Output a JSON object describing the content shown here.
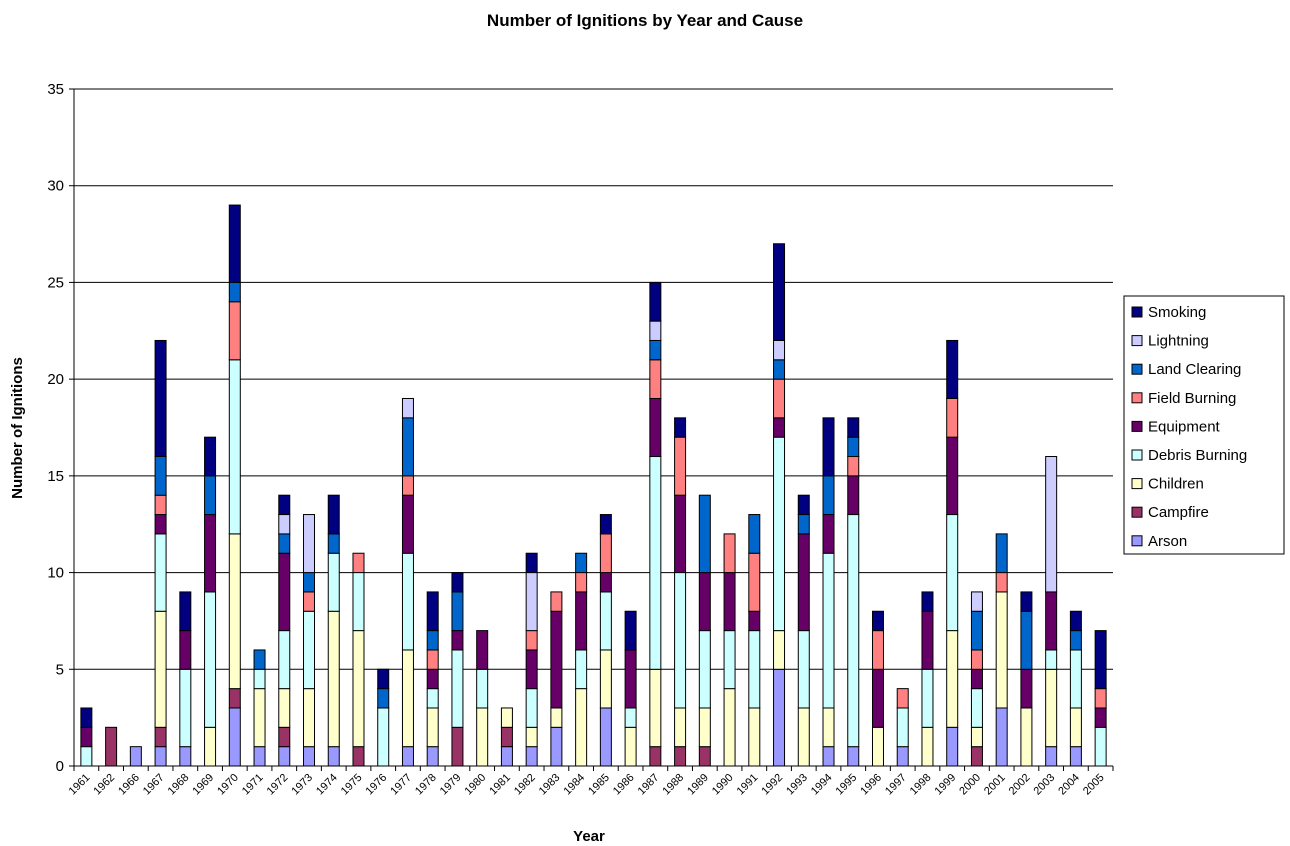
{
  "chart_data": {
    "type": "bar",
    "stacked": true,
    "title": "Number of Ignitions by Year and Cause",
    "xlabel": "Year",
    "ylabel": "Number of Ignitions",
    "ylim": [
      0,
      35
    ],
    "yticks": [
      0,
      5,
      10,
      15,
      20,
      25,
      30,
      35
    ],
    "grid": true,
    "legend_position": "right",
    "categories": [
      "1961",
      "1962",
      "1966",
      "1967",
      "1968",
      "1969",
      "1970",
      "1971",
      "1972",
      "1973",
      "1974",
      "1975",
      "1976",
      "1977",
      "1978",
      "1979",
      "1980",
      "1981",
      "1982",
      "1983",
      "1984",
      "1985",
      "1986",
      "1987",
      "1988",
      "1989",
      "1990",
      "1991",
      "1992",
      "1993",
      "1994",
      "1995",
      "1996",
      "1997",
      "1998",
      "1999",
      "2000",
      "2001",
      "2002",
      "2003",
      "2004",
      "2005"
    ],
    "series": [
      {
        "name": "Arson",
        "color": "#9999ff",
        "values": [
          0,
          0,
          1,
          1,
          1,
          0,
          3,
          1,
          1,
          1,
          1,
          0,
          0,
          1,
          1,
          0,
          0,
          1,
          1,
          2,
          0,
          3,
          0,
          0,
          0,
          0,
          0,
          0,
          5,
          0,
          1,
          1,
          0,
          1,
          0,
          2,
          0,
          3,
          0,
          1,
          1,
          0
        ]
      },
      {
        "name": "Campfire",
        "color": "#993366",
        "values": [
          0,
          2,
          0,
          1,
          0,
          0,
          1,
          0,
          1,
          0,
          0,
          1,
          0,
          0,
          0,
          2,
          0,
          1,
          0,
          0,
          0,
          0,
          0,
          1,
          1,
          1,
          0,
          0,
          0,
          0,
          0,
          0,
          0,
          0,
          0,
          0,
          1,
          0,
          0,
          0,
          0,
          0
        ]
      },
      {
        "name": "Children",
        "color": "#ffffcc",
        "values": [
          0,
          0,
          0,
          6,
          0,
          2,
          8,
          3,
          2,
          3,
          7,
          6,
          0,
          5,
          2,
          0,
          3,
          1,
          1,
          1,
          4,
          3,
          2,
          4,
          2,
          2,
          4,
          3,
          2,
          3,
          2,
          0,
          2,
          0,
          2,
          5,
          1,
          6,
          3,
          4,
          2,
          0
        ]
      },
      {
        "name": "Debris Burning",
        "color": "#ccffff",
        "values": [
          1,
          0,
          0,
          4,
          4,
          7,
          9,
          1,
          3,
          4,
          3,
          3,
          3,
          5,
          1,
          4,
          2,
          0,
          2,
          0,
          2,
          3,
          1,
          11,
          7,
          4,
          3,
          4,
          10,
          4,
          8,
          12,
          0,
          2,
          3,
          6,
          2,
          0,
          0,
          1,
          3,
          2
        ]
      },
      {
        "name": "Equipment",
        "color": "#660066",
        "values": [
          1,
          0,
          0,
          1,
          2,
          4,
          0,
          0,
          4,
          0,
          0,
          0,
          0,
          3,
          1,
          1,
          2,
          0,
          2,
          5,
          3,
          1,
          3,
          3,
          4,
          3,
          3,
          1,
          1,
          5,
          2,
          2,
          3,
          0,
          3,
          4,
          1,
          0,
          2,
          3,
          0,
          1
        ]
      },
      {
        "name": "Field Burning",
        "color": "#ff8080",
        "values": [
          0,
          0,
          0,
          1,
          0,
          0,
          3,
          0,
          0,
          1,
          0,
          1,
          0,
          1,
          1,
          0,
          0,
          0,
          1,
          1,
          1,
          2,
          0,
          2,
          3,
          0,
          2,
          3,
          2,
          0,
          0,
          1,
          2,
          1,
          0,
          2,
          1,
          1,
          0,
          0,
          0,
          1
        ]
      },
      {
        "name": "Land Clearing",
        "color": "#0066cc",
        "values": [
          0,
          0,
          0,
          2,
          0,
          2,
          1,
          1,
          1,
          1,
          1,
          0,
          1,
          3,
          1,
          2,
          0,
          0,
          0,
          0,
          1,
          0,
          0,
          1,
          0,
          4,
          0,
          2,
          1,
          1,
          2,
          1,
          0,
          0,
          0,
          0,
          2,
          2,
          3,
          0,
          1,
          0
        ]
      },
      {
        "name": "Lightning",
        "color": "#ccccff",
        "values": [
          0,
          0,
          0,
          0,
          0,
          0,
          0,
          0,
          1,
          3,
          0,
          0,
          0,
          1,
          0,
          0,
          0,
          0,
          3,
          0,
          0,
          0,
          0,
          1,
          0,
          0,
          0,
          0,
          1,
          0,
          0,
          0,
          0,
          0,
          0,
          0,
          1,
          0,
          0,
          7,
          0,
          0
        ]
      },
      {
        "name": "Smoking",
        "color": "#000080",
        "values": [
          1,
          0,
          0,
          6,
          2,
          2,
          4,
          0,
          1,
          0,
          2,
          0,
          1,
          0,
          2,
          1,
          0,
          0,
          1,
          0,
          0,
          1,
          2,
          2,
          1,
          0,
          0,
          0,
          5,
          1,
          3,
          1,
          1,
          0,
          1,
          3,
          0,
          0,
          1,
          0,
          1,
          3
        ]
      }
    ]
  }
}
